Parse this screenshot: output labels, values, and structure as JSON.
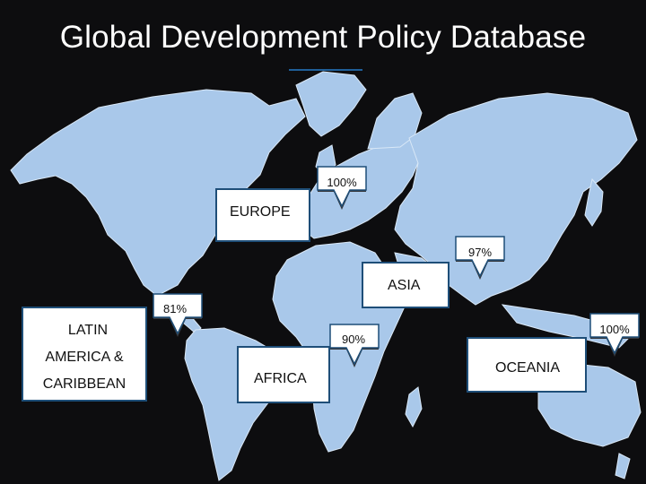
{
  "title": "Global Development Policy Database",
  "colors": {
    "background": "#0d0d0f",
    "land": "#a9c8ea",
    "accent": "#1e4e78",
    "pin_shadow": "#35373b"
  },
  "regions": [
    {
      "id": "europe",
      "label": "EUROPE",
      "value": "100%"
    },
    {
      "id": "asia",
      "label": "ASIA",
      "value": "97%"
    },
    {
      "id": "latam",
      "label_lines": [
        "LATIN",
        "AMERICA &",
        "CARIBBEAN"
      ],
      "value": "81%"
    },
    {
      "id": "africa",
      "label": "AFRICA",
      "value": "90%"
    },
    {
      "id": "oceania",
      "label": "OCEANIA",
      "value": "100%"
    }
  ]
}
